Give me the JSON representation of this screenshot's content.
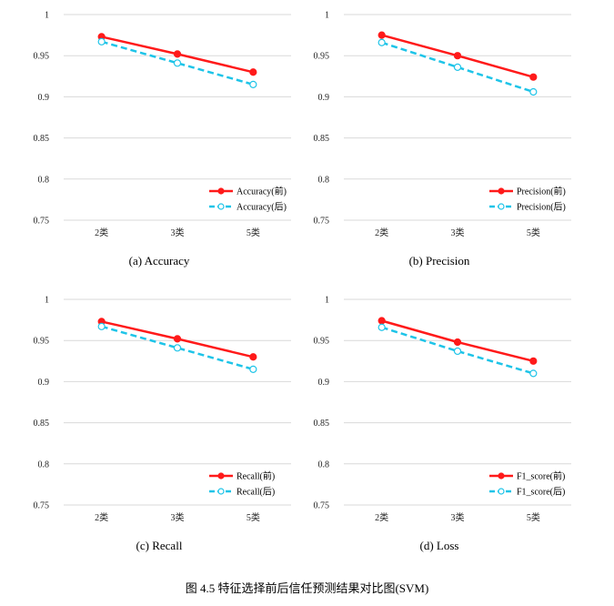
{
  "figure_caption": "图 4.5 特征选择前后信任预测结果对比图(SVM)",
  "colors": {
    "before": "#ff1a1a",
    "after": "#1ec4e8",
    "grid": "#d9d9d9"
  },
  "chart_data": [
    {
      "type": "line",
      "caption": "(a) Accuracy",
      "categories": [
        "2类",
        "3类",
        "5类"
      ],
      "ylim": [
        0.75,
        1.0
      ],
      "yticks": [
        "1",
        "0.95",
        "0.9",
        "0.85",
        "0.8",
        "0.75"
      ],
      "grid": true,
      "legend_position": "bottom-right",
      "series": [
        {
          "name": "Accuracy(前)",
          "values": [
            0.973,
            0.952,
            0.93
          ],
          "style": "solid",
          "marker": "filled-circle"
        },
        {
          "name": "Accuracy(后)",
          "values": [
            0.967,
            0.941,
            0.915
          ],
          "style": "dashed",
          "marker": "open-circle"
        }
      ]
    },
    {
      "type": "line",
      "caption": "(b) Precision",
      "categories": [
        "2类",
        "3类",
        "5类"
      ],
      "ylim": [
        0.75,
        1.0
      ],
      "yticks": [
        "1",
        "0.95",
        "0.9",
        "0.85",
        "0.8",
        "0.75"
      ],
      "grid": true,
      "legend_position": "bottom-right",
      "series": [
        {
          "name": "Precision(前)",
          "values": [
            0.975,
            0.95,
            0.924
          ],
          "style": "solid",
          "marker": "filled-circle"
        },
        {
          "name": "Precision(后)",
          "values": [
            0.966,
            0.936,
            0.906
          ],
          "style": "dashed",
          "marker": "open-circle"
        }
      ]
    },
    {
      "type": "line",
      "caption": "(c) Recall",
      "categories": [
        "2类",
        "3类",
        "5类"
      ],
      "ylim": [
        0.75,
        1.0
      ],
      "yticks": [
        "1",
        "0.95",
        "0.9",
        "0.85",
        "0.8",
        "0.75"
      ],
      "grid": true,
      "legend_position": "bottom-right",
      "series": [
        {
          "name": "Recall(前)",
          "values": [
            0.973,
            0.952,
            0.93
          ],
          "style": "solid",
          "marker": "filled-circle"
        },
        {
          "name": "Recall(后)",
          "values": [
            0.967,
            0.941,
            0.915
          ],
          "style": "dashed",
          "marker": "open-circle"
        }
      ]
    },
    {
      "type": "line",
      "caption": "(d) Loss",
      "categories": [
        "2类",
        "3类",
        "5类"
      ],
      "ylim": [
        0.75,
        1.0
      ],
      "yticks": [
        "1",
        "0.95",
        "0.9",
        "0.85",
        "0.8",
        "0.75"
      ],
      "grid": true,
      "legend_position": "bottom-right",
      "series": [
        {
          "name": "F1_score(前)",
          "values": [
            0.974,
            0.948,
            0.925
          ],
          "style": "solid",
          "marker": "filled-circle"
        },
        {
          "name": "F1_score(后)",
          "values": [
            0.966,
            0.937,
            0.91
          ],
          "style": "dashed",
          "marker": "open-circle"
        }
      ]
    }
  ]
}
